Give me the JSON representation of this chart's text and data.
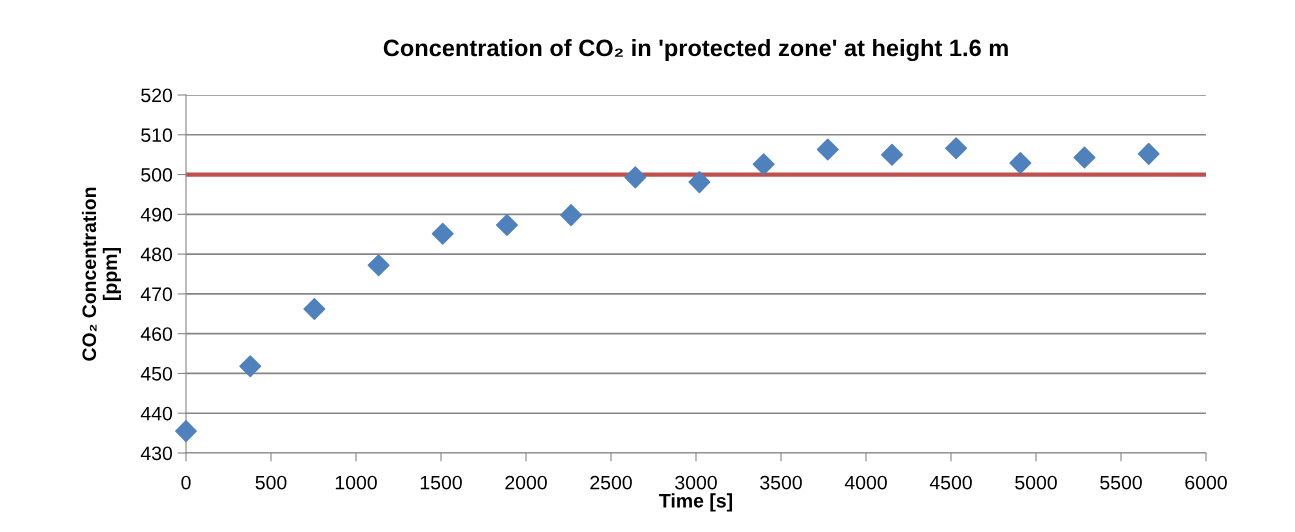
{
  "chart_data": {
    "type": "scatter",
    "title": "Concentration of CO₂ in 'protected zone' at height 1.6 m",
    "xlabel": "Time [s]",
    "ylabel": "CO₂ Concentration\n[ppm]",
    "x": [
      0,
      378,
      755,
      1133,
      1510,
      1888,
      2265,
      2643,
      3020,
      3398,
      3775,
      4153,
      4530,
      4908,
      5285,
      5663
    ],
    "series": [
      {
        "color": "#4f81bd",
        "values": [
          435.5,
          451.8,
          466.2,
          477.2,
          485.1,
          487.3,
          489.8,
          499.3,
          498.1,
          502.6,
          506.3,
          505.0,
          506.6,
          502.9,
          504.3,
          505.2
        ]
      }
    ],
    "marker": "diamond",
    "xlim": [
      0,
      6000
    ],
    "xticks": [
      0,
      500,
      1000,
      1500,
      2000,
      2500,
      3000,
      3500,
      4000,
      4500,
      5000,
      5500,
      6000
    ],
    "ylim": [
      430,
      520
    ],
    "yticks": [
      430,
      440,
      450,
      460,
      470,
      480,
      490,
      500,
      510,
      520
    ],
    "ref_lines": [
      {
        "axis": "y",
        "value": 500,
        "color": "#c0504d"
      }
    ],
    "grid": "y"
  }
}
